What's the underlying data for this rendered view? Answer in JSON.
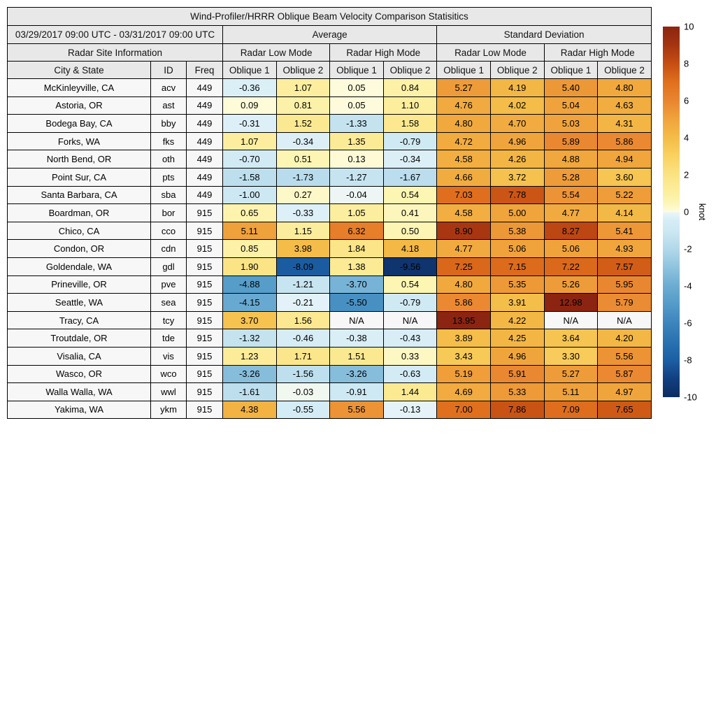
{
  "chart_data": {
    "type": "heatmap_table",
    "title": "Wind-Profiler/HRRR Oblique Beam Velocity Comparison Statisitics",
    "date_range": "03/29/2017 09:00 UTC - 03/31/2017 09:00 UTC",
    "groups": {
      "site_info": "Radar Site Information",
      "average": "Average",
      "std_dev": "Standard Deviation",
      "low_mode": "Radar Low Mode",
      "high_mode": "Radar High Mode"
    },
    "headers": {
      "city": "City & State",
      "id": "ID",
      "freq": "Freq",
      "oblique1": "Oblique 1",
      "oblique2": "Oblique 2"
    },
    "rows": [
      {
        "city": "McKinleyville, CA",
        "id": "acv",
        "freq": "449",
        "values": [
          -0.36,
          1.07,
          0.05,
          0.84,
          5.27,
          4.19,
          5.4,
          4.8
        ]
      },
      {
        "city": "Astoria, OR",
        "id": "ast",
        "freq": "449",
        "values": [
          0.09,
          0.81,
          0.05,
          1.1,
          4.76,
          4.02,
          5.04,
          4.63
        ]
      },
      {
        "city": "Bodega Bay, CA",
        "id": "bby",
        "freq": "449",
        "values": [
          -0.31,
          1.52,
          -1.33,
          1.58,
          4.8,
          4.7,
          5.03,
          4.31
        ]
      },
      {
        "city": "Forks, WA",
        "id": "fks",
        "freq": "449",
        "values": [
          1.07,
          -0.34,
          1.35,
          -0.79,
          4.72,
          4.96,
          5.89,
          5.86
        ]
      },
      {
        "city": "North Bend, OR",
        "id": "oth",
        "freq": "449",
        "values": [
          -0.7,
          0.51,
          0.13,
          -0.34,
          4.58,
          4.26,
          4.88,
          4.94
        ]
      },
      {
        "city": "Point Sur, CA",
        "id": "pts",
        "freq": "449",
        "values": [
          -1.58,
          -1.73,
          -1.27,
          -1.67,
          4.66,
          3.72,
          5.28,
          3.6
        ]
      },
      {
        "city": "Santa Barbara, CA",
        "id": "sba",
        "freq": "449",
        "values": [
          -1.0,
          0.27,
          -0.04,
          0.54,
          7.03,
          7.78,
          5.54,
          5.22
        ]
      },
      {
        "city": "Boardman, OR",
        "id": "bor",
        "freq": "915",
        "values": [
          0.65,
          -0.33,
          1.05,
          0.41,
          4.58,
          5.0,
          4.77,
          4.14
        ]
      },
      {
        "city": "Chico, CA",
        "id": "cco",
        "freq": "915",
        "values": [
          5.11,
          1.15,
          6.32,
          0.5,
          8.9,
          5.38,
          8.27,
          5.41
        ]
      },
      {
        "city": "Condon, OR",
        "id": "cdn",
        "freq": "915",
        "values": [
          0.85,
          3.98,
          1.84,
          4.18,
          4.77,
          5.06,
          5.06,
          4.93
        ]
      },
      {
        "city": "Goldendale, WA",
        "id": "gdl",
        "freq": "915",
        "values": [
          1.9,
          -8.09,
          1.38,
          -9.56,
          7.25,
          7.15,
          7.22,
          7.57
        ]
      },
      {
        "city": "Prineville, OR",
        "id": "pve",
        "freq": "915",
        "values": [
          -4.88,
          -1.21,
          -3.7,
          0.54,
          4.8,
          5.35,
          5.26,
          5.95
        ]
      },
      {
        "city": "Seattle, WA",
        "id": "sea",
        "freq": "915",
        "values": [
          -4.15,
          -0.21,
          -5.5,
          -0.79,
          5.86,
          3.91,
          12.98,
          5.79
        ]
      },
      {
        "city": "Tracy, CA",
        "id": "tcy",
        "freq": "915",
        "values": [
          3.7,
          1.56,
          "N/A",
          "N/A",
          13.95,
          4.22,
          "N/A",
          "N/A"
        ]
      },
      {
        "city": "Troutdale, OR",
        "id": "tde",
        "freq": "915",
        "values": [
          -1.32,
          -0.46,
          -0.38,
          -0.43,
          3.89,
          4.25,
          3.64,
          4.2
        ]
      },
      {
        "city": "Visalia, CA",
        "id": "vis",
        "freq": "915",
        "values": [
          1.23,
          1.71,
          1.51,
          0.33,
          3.43,
          4.96,
          3.3,
          5.56
        ]
      },
      {
        "city": "Wasco, OR",
        "id": "wco",
        "freq": "915",
        "values": [
          -3.26,
          -1.56,
          -3.26,
          -0.63,
          5.19,
          5.91,
          5.27,
          5.87
        ]
      },
      {
        "city": "Walla Walla, WA",
        "id": "wwl",
        "freq": "915",
        "values": [
          -1.61,
          -0.03,
          -0.91,
          1.44,
          4.69,
          5.33,
          5.11,
          4.97
        ]
      },
      {
        "city": "Yakima, WA",
        "id": "ykm",
        "freq": "915",
        "values": [
          4.38,
          -0.55,
          5.56,
          -0.13,
          7.0,
          7.86,
          7.09,
          7.65
        ]
      }
    ],
    "na_text": "N/A",
    "colorbar": {
      "unit": "knot",
      "vmin": -10,
      "vmax": 10,
      "ticks": [
        10,
        8,
        6,
        4,
        2,
        0,
        -2,
        -4,
        -6,
        -8,
        -10
      ],
      "stops": [
        [
          -10,
          "#0c2c60"
        ],
        [
          -9,
          "#123f80"
        ],
        [
          -8,
          "#1c5fa4"
        ],
        [
          -7,
          "#2a72b0"
        ],
        [
          -6,
          "#3d85bc"
        ],
        [
          -5,
          "#539bc8"
        ],
        [
          -4,
          "#6cacd2"
        ],
        [
          -3,
          "#8fc3de"
        ],
        [
          -2,
          "#b2d8ea"
        ],
        [
          -1,
          "#cde8f2"
        ],
        [
          -0.5,
          "#d5ecf5"
        ],
        [
          -0.05,
          "#e9f5fa"
        ],
        [
          0,
          "#fefce0"
        ],
        [
          0.5,
          "#fdf5b4"
        ],
        [
          1,
          "#fcefa0"
        ],
        [
          2,
          "#fbe383"
        ],
        [
          3,
          "#f9d261"
        ],
        [
          4,
          "#f4bc48"
        ],
        [
          5,
          "#f0a43c"
        ],
        [
          6,
          "#e98530"
        ],
        [
          7,
          "#e0701e"
        ],
        [
          8,
          "#c54e12"
        ],
        [
          9,
          "#a53511"
        ],
        [
          10,
          "#8b2410"
        ]
      ],
      "na_color": "#f7f7f7",
      "header_bg": "#e8e8e8",
      "label_bg": "#f7f7f7"
    }
  }
}
